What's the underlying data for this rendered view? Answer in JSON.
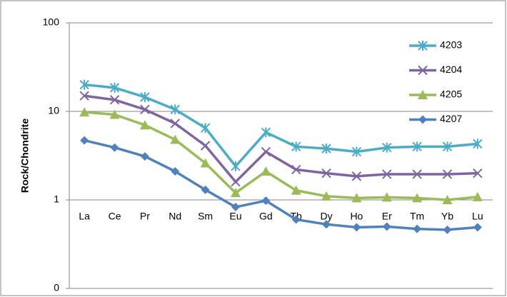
{
  "chart_data": {
    "type": "line",
    "ylabel": "Rock/Chondrite",
    "categories": [
      "La",
      "Ce",
      "Pr",
      "Nd",
      "Sm",
      "Eu",
      "Gd",
      "Tb",
      "Dy",
      "Ho",
      "Er",
      "Tm",
      "Yb",
      "Lu"
    ],
    "series": [
      {
        "name": "4203",
        "color": "#4bacc6",
        "marker": "star",
        "values": [
          20,
          18.5,
          14.5,
          10.5,
          6.5,
          2.4,
          5.8,
          4.0,
          3.8,
          3.5,
          3.9,
          4.0,
          4.0,
          4.3
        ]
      },
      {
        "name": "4204",
        "color": "#8064a2",
        "marker": "x",
        "values": [
          15,
          13.5,
          10.5,
          7.3,
          4.1,
          1.6,
          3.5,
          2.2,
          2.0,
          1.85,
          1.95,
          1.95,
          1.95,
          2.0
        ]
      },
      {
        "name": "4205",
        "color": "#9bbb59",
        "marker": "triangle",
        "values": [
          9.8,
          9.2,
          7.0,
          4.8,
          2.6,
          1.2,
          2.1,
          1.28,
          1.1,
          1.05,
          1.07,
          1.05,
          1.0,
          1.08
        ]
      },
      {
        "name": "4207",
        "color": "#4f81bd",
        "marker": "diamond",
        "values": [
          4.7,
          3.9,
          3.1,
          2.1,
          1.3,
          0.83,
          0.98,
          0.6,
          0.53,
          0.49,
          0.5,
          0.47,
          0.46,
          0.49
        ]
      }
    ],
    "ylim": [
      0.1,
      100
    ],
    "yticks": [
      {
        "value": 0.1,
        "label": "0"
      },
      1,
      10,
      100
    ],
    "ylog": true,
    "grid": true,
    "xaxis_at": 1,
    "legend": "right"
  }
}
